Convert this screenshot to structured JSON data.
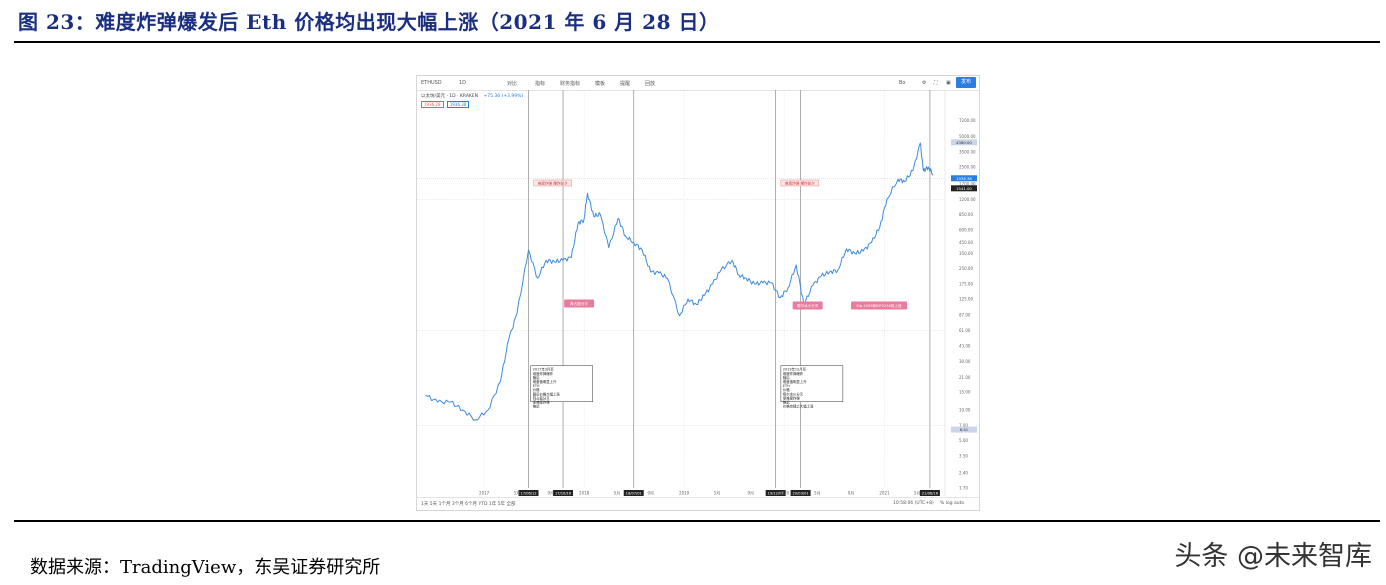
{
  "figure": {
    "title": "图 23：难度炸弹爆发后 Eth 价格均出现大幅上涨（2021 年 6 月 28 日）",
    "source": "数据来源：TradingView，东吴证券研究所",
    "watermark": "头条 @未来智库"
  },
  "toolbar": {
    "symbol": "ETHUSD",
    "interval": "1D",
    "compare": "对比",
    "indicators": "指标",
    "financials": "财务指标",
    "template": "模板",
    "alert": "提醒",
    "replay": "回放",
    "layout_name": "Bo",
    "publish": "发布"
  },
  "legend": {
    "pair": "以太坊/美元 · 1D · KRAKEN",
    "change": "+75.36 (+3.99%)",
    "price_a": "1936.28",
    "price_b": "1936.38"
  },
  "bottom_bar": {
    "ranges": [
      "1天",
      "5天",
      "1个月",
      "3个月",
      "6个月",
      "YTD",
      "1年",
      "5年",
      "全部"
    ],
    "time": "10:58:06 (UTC+8)",
    "scale": [
      "%",
      "log",
      "auto"
    ]
  },
  "chart_data": {
    "type": "line",
    "title": "",
    "xlabel": "",
    "ylabel": "",
    "y_scale": "log",
    "ylim": [
      1.7,
      10000
    ],
    "grid": true,
    "series": [
      {
        "name": "",
        "color": "#3d8bdd",
        "x": [
          "2016-06-01",
          "2016-07-15",
          "2016-09-01",
          "2016-10-15",
          "2016-12-01",
          "2017-01-15",
          "2017-03-01",
          "2017-04-01",
          "2017-05-01",
          "2017-06-12",
          "2017-07-15",
          "2017-08-15",
          "2017-09-15",
          "2017-10-15",
          "2017-11-15",
          "2017-12-10",
          "2017-12-31",
          "2018-01-13",
          "2018-02-05",
          "2018-03-01",
          "2018-04-01",
          "2018-05-05",
          "2018-06-01",
          "2018-07-01",
          "2018-08-01",
          "2018-09-01",
          "2018-10-01",
          "2018-11-01",
          "2018-12-15",
          "2019-01-15",
          "2019-02-15",
          "2019-03-15",
          "2019-04-15",
          "2019-05-15",
          "2019-06-25",
          "2019-07-20",
          "2019-08-15",
          "2019-09-15",
          "2019-10-15",
          "2019-11-15",
          "2019-12-17",
          "2020-01-15",
          "2020-02-14",
          "2020-03-13",
          "2020-04-15",
          "2020-05-15",
          "2020-06-15",
          "2020-07-15",
          "2020-08-15",
          "2020-09-15",
          "2020-10-15",
          "2020-11-15",
          "2020-12-15",
          "2021-01-10",
          "2021-02-20",
          "2021-03-15",
          "2021-04-15",
          "2021-05-12",
          "2021-05-23",
          "2021-06-10",
          "2021-06-28"
        ],
        "y": [
          14,
          12,
          12,
          10,
          8,
          10,
          19,
          50,
          90,
          380,
          200,
          300,
          290,
          300,
          320,
          700,
          750,
          1380,
          820,
          850,
          400,
          780,
          520,
          450,
          380,
          230,
          225,
          200,
          85,
          125,
          110,
          135,
          175,
          240,
          300,
          215,
          200,
          175,
          180,
          180,
          128,
          160,
          270,
          110,
          170,
          210,
          230,
          240,
          390,
          350,
          370,
          450,
          640,
          1200,
          1900,
          1800,
          2300,
          4300,
          2300,
          2500,
          2100
        ]
      }
    ],
    "y_ticks": [
      "7200.00",
      "5000.00",
      "3500.00",
      "2500.00",
      "1700.00",
      "1200.00",
      "850.00",
      "600.00",
      "450.00",
      "350.00",
      "250.00",
      "175.00",
      "125.00",
      "87.00",
      "61.00",
      "43.00",
      "30.00",
      "21.00",
      "15.00",
      "10.00",
      "7.00",
      "5.00",
      "3.50",
      "2.40",
      "1.70"
    ],
    "x_ticks": [
      "2017",
      "5月",
      "9月",
      "2018",
      "5月",
      "9月",
      "2019",
      "5月",
      "9月",
      "2020",
      "5月",
      "9月",
      "2021",
      "5月"
    ],
    "event_lines": [
      {
        "x": "2017-06-12",
        "label": "17/06/12"
      },
      {
        "x": "2017-10-16",
        "label": "17/10/16"
      },
      {
        "x": "2018-07-01",
        "label": "18/07/01"
      },
      {
        "x": "2019-12-01",
        "label": "19/12/01"
      },
      {
        "x": "2020-03-01",
        "label": "20/03/01"
      },
      {
        "x": "2021-06-16",
        "label": "21/06/16"
      }
    ],
    "price_labels": [
      {
        "y": 4380,
        "label": "4380.00"
      },
      {
        "y": 1936,
        "label": "1936.38"
      },
      {
        "y": 1541,
        "label": "1541.00"
      },
      {
        "y": 6.41,
        "label": "6.41"
      }
    ],
    "annotations": [
      {
        "x": "2017-07-01",
        "y": 1700,
        "text": "难度炸弹 爆炸前夕"
      },
      {
        "x": "2019-12-20",
        "y": 1700,
        "text": "难度炸弹 爆炸前夕"
      },
      {
        "x": "2017-10-20",
        "y": 110,
        "text": "拜占庭分叉"
      },
      {
        "x": "2020-02-01",
        "y": 105,
        "text": "缪尔冰川分叉"
      },
      {
        "x": "2020-09-01",
        "y": 105,
        "text": "Eip-1559和EIP3238将上线"
      },
      {
        "x": "2017-06-20",
        "y": 25,
        "text": "2017年3月至 难度炸弹爆炸 随后 难度值明显上升 ETH 价格 随后价格大幅上涨 拜占庭分叉 使难度炸弹 推迟"
      },
      {
        "x": "2019-12-20",
        "y": 25,
        "text": "2019年12月至 难度炸弹爆炸 随后 难度值明显上升 ETH 价格 缪尔冰川分叉 使难度炸弹 推迟 价格也随之大幅上涨"
      }
    ]
  }
}
